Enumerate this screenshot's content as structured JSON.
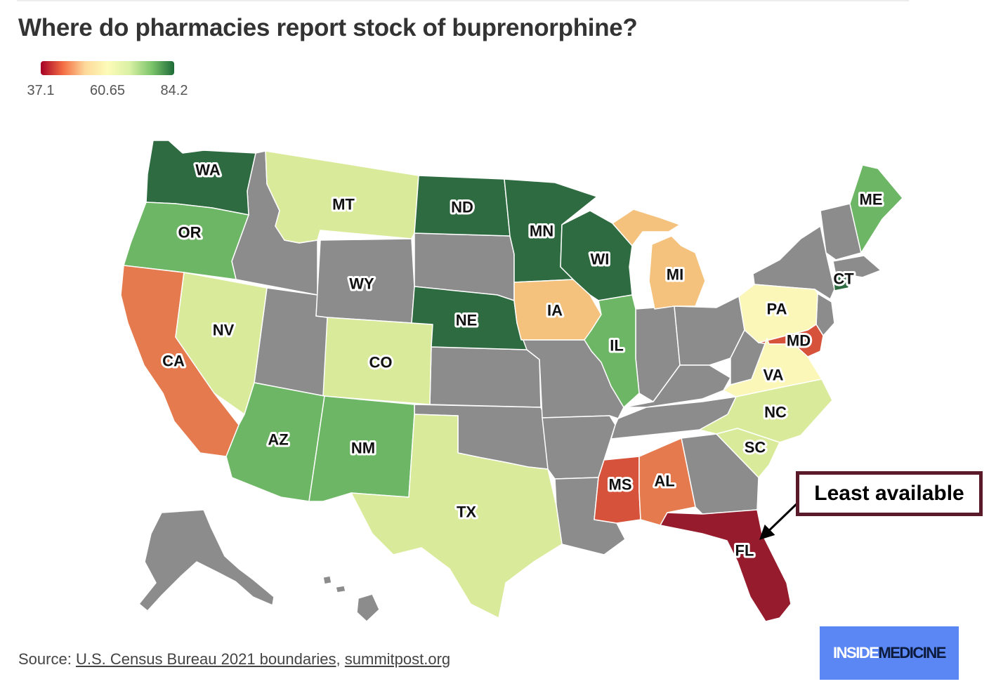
{
  "title": "Where do pharmacies report stock of buprenorphine?",
  "legend": {
    "min": "37.1",
    "mid": "60.65",
    "max": "84.2",
    "gradient": [
      "#a50026",
      "#f46d43",
      "#fdd99b",
      "#fdfbb8",
      "#d9f0a3",
      "#7bc46a",
      "#1e6b38"
    ]
  },
  "colors": {
    "no_data": "#8c8c8c",
    "very_low": "#961c2d",
    "low": "#d7523a",
    "low_mid": "#e47a4e",
    "mid_low": "#f4c27c",
    "mid": "#fbf7b8",
    "mid_high": "#d9eb9a",
    "high": "#6db665",
    "very_high": "#2e6b41",
    "border": "#ffffff"
  },
  "states": {
    "WA": {
      "label": "WA",
      "band": "very_high"
    },
    "OR": {
      "label": "OR",
      "band": "high"
    },
    "CA": {
      "label": "CA",
      "band": "low_mid"
    },
    "NV": {
      "label": "NV",
      "band": "mid_high"
    },
    "MT": {
      "label": "MT",
      "band": "mid_high"
    },
    "WY": {
      "label": "WY",
      "band": "no_data"
    },
    "CO": {
      "label": "CO",
      "band": "mid_high"
    },
    "AZ": {
      "label": "AZ",
      "band": "high"
    },
    "NM": {
      "label": "NM",
      "band": "high"
    },
    "TX": {
      "label": "TX",
      "band": "mid_high"
    },
    "ND": {
      "label": "ND",
      "band": "very_high"
    },
    "NE": {
      "label": "NE",
      "band": "very_high"
    },
    "MN": {
      "label": "MN",
      "band": "very_high"
    },
    "IA": {
      "label": "IA",
      "band": "mid_low"
    },
    "WI": {
      "label": "WI",
      "band": "very_high"
    },
    "IL": {
      "label": "IL",
      "band": "high"
    },
    "MI": {
      "label": "MI",
      "band": "mid_low"
    },
    "MS": {
      "label": "MS",
      "band": "low"
    },
    "AL": {
      "label": "AL",
      "band": "low_mid"
    },
    "FL": {
      "label": "FL",
      "band": "very_low"
    },
    "PA": {
      "label": "PA",
      "band": "mid"
    },
    "MD": {
      "label": "MD",
      "band": "low"
    },
    "VA": {
      "label": "VA",
      "band": "mid"
    },
    "NC": {
      "label": "NC",
      "band": "mid_high"
    },
    "SC": {
      "label": "SC",
      "band": "mid_high"
    },
    "ME": {
      "label": "ME",
      "band": "high"
    },
    "CT": {
      "label": "CT",
      "band": "very_high"
    }
  },
  "callout": {
    "text": "Least available"
  },
  "source": {
    "prefix": "Source:",
    "link1": "U.S. Census Bureau 2021 boundaries",
    "separator": ",",
    "link2": "summitpost.org"
  },
  "logo": {
    "part1": "INSIDE",
    "part2": "MEDICINE"
  }
}
